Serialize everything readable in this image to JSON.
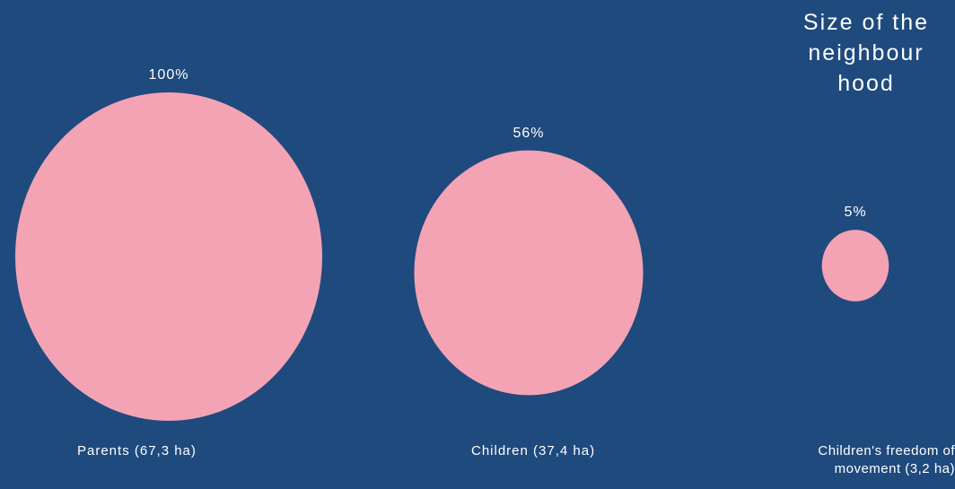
{
  "chart_data": {
    "type": "bubble",
    "title": "Size of the neighbour hood",
    "categories": [
      "Parents (67,3 ha)",
      "Children (37,4 ha)",
      "Children's freedom of movement (3,2 ha)"
    ],
    "values": [
      67.3,
      37.4,
      3.2
    ],
    "unit": "ha",
    "percent_labels": [
      "100%",
      "56%",
      "5%"
    ],
    "percent_values": [
      100,
      56,
      5
    ],
    "bubble_color": "#f4a3b4",
    "background_color": "#1f4a7e"
  }
}
